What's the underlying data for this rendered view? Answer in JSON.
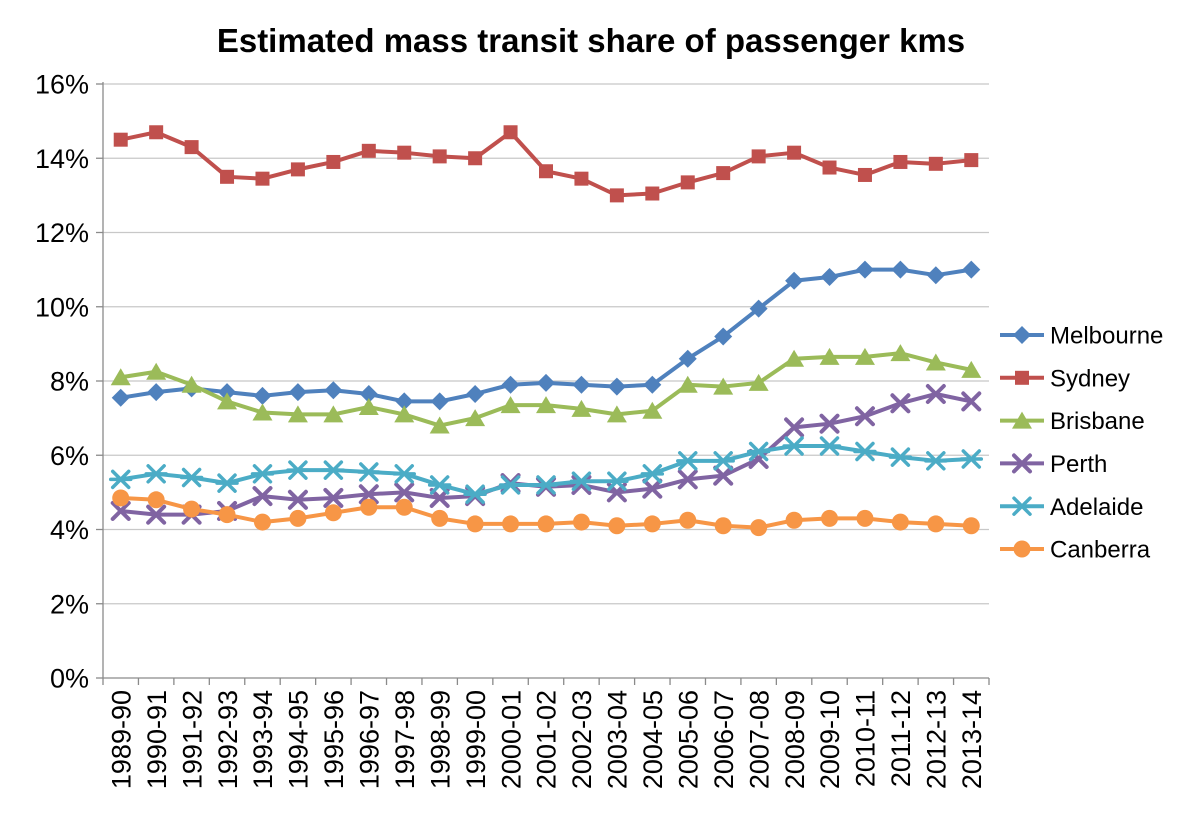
{
  "title": "Estimated mass transit share of passenger kms",
  "chart_data": {
    "type": "line",
    "title": "Estimated mass transit share of passenger kms",
    "xlabel": "",
    "ylabel": "",
    "grid": true,
    "legend_position": "right",
    "ylim": [
      0,
      16
    ],
    "ytick_step": 2,
    "ytick_labels": [
      "0%",
      "2%",
      "4%",
      "6%",
      "8%",
      "10%",
      "12%",
      "14%",
      "16%"
    ],
    "categories": [
      "1989-90",
      "1990-91",
      "1991-92",
      "1992-93",
      "1993-94",
      "1994-95",
      "1995-96",
      "1996-97",
      "1997-98",
      "1998-99",
      "1999-00",
      "2000-01",
      "2001-02",
      "2002-03",
      "2003-04",
      "2004-05",
      "2005-06",
      "2006-07",
      "2007-08",
      "2008-09",
      "2009-10",
      "2010-11",
      "2011-12",
      "2012-13",
      "2013-14"
    ],
    "series": [
      {
        "name": "Melbourne",
        "color": "#4F81BD",
        "marker": "diamond",
        "values": [
          7.55,
          7.7,
          7.8,
          7.7,
          7.6,
          7.7,
          7.75,
          7.65,
          7.45,
          7.45,
          7.65,
          7.9,
          7.95,
          7.9,
          7.85,
          7.9,
          8.6,
          9.2,
          9.95,
          10.7,
          10.8,
          11.0,
          11.0,
          10.85,
          11.0
        ]
      },
      {
        "name": "Sydney",
        "color": "#C0504D",
        "marker": "square",
        "values": [
          14.5,
          14.7,
          14.3,
          13.5,
          13.45,
          13.7,
          13.9,
          14.2,
          14.15,
          14.05,
          14.0,
          14.7,
          13.65,
          13.45,
          13.0,
          13.05,
          13.35,
          13.6,
          14.05,
          14.15,
          13.75,
          13.55,
          13.9,
          13.85,
          13.95
        ]
      },
      {
        "name": "Brisbane",
        "color": "#9BBB59",
        "marker": "triangle",
        "values": [
          8.1,
          8.25,
          7.9,
          7.45,
          7.15,
          7.1,
          7.1,
          7.3,
          7.1,
          6.8,
          7.0,
          7.35,
          7.35,
          7.25,
          7.1,
          7.2,
          7.9,
          7.85,
          7.95,
          8.6,
          8.65,
          8.65,
          8.75,
          8.5,
          8.3
        ]
      },
      {
        "name": "Perth",
        "color": "#8064A2",
        "marker": "x",
        "values": [
          4.5,
          4.4,
          4.4,
          4.5,
          4.9,
          4.8,
          4.85,
          4.95,
          5.0,
          4.85,
          4.9,
          5.25,
          5.15,
          5.2,
          5.0,
          5.1,
          5.35,
          5.45,
          5.9,
          6.75,
          6.85,
          7.05,
          7.4,
          7.65,
          7.45
        ]
      },
      {
        "name": "Adelaide",
        "color": "#4BACC6",
        "marker": "star",
        "values": [
          5.35,
          5.5,
          5.4,
          5.25,
          5.5,
          5.6,
          5.6,
          5.55,
          5.5,
          5.2,
          4.95,
          5.2,
          5.2,
          5.3,
          5.3,
          5.5,
          5.85,
          5.85,
          6.1,
          6.25,
          6.25,
          6.1,
          5.95,
          5.85,
          5.9
        ]
      },
      {
        "name": "Canberra",
        "color": "#F79646",
        "marker": "circle",
        "values": [
          4.85,
          4.8,
          4.55,
          4.4,
          4.2,
          4.3,
          4.45,
          4.6,
          4.6,
          4.3,
          4.15,
          4.15,
          4.15,
          4.2,
          4.1,
          4.15,
          4.25,
          4.1,
          4.05,
          4.25,
          4.3,
          4.3,
          4.2,
          4.15,
          4.1
        ]
      }
    ],
    "colors": {
      "grid": "#C8C8C8",
      "axis": "#8A8A8A",
      "text": "#000000",
      "background": "#FFFFFF"
    }
  }
}
